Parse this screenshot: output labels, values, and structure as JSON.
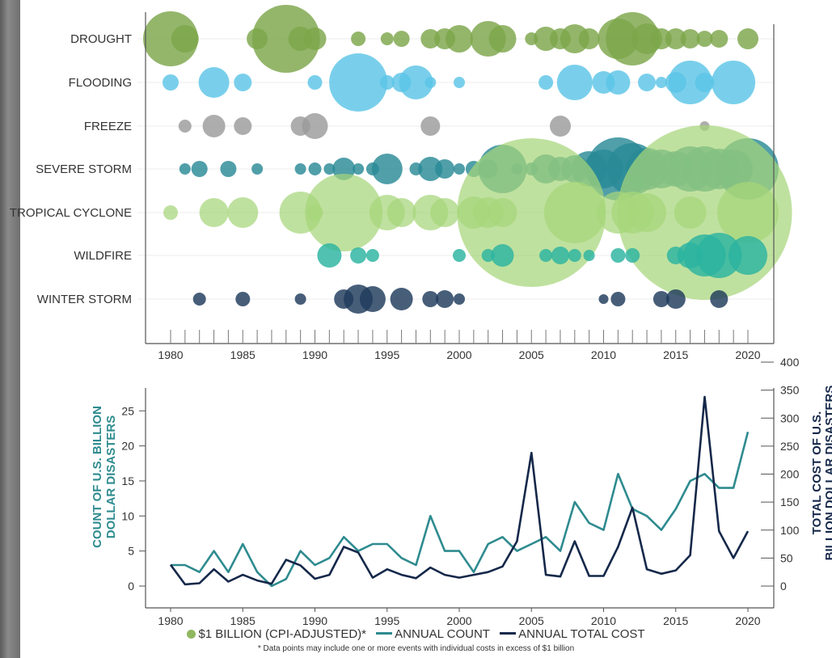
{
  "chart_data": [
    {
      "type": "bubble",
      "categories": [
        "DROUGHT",
        "FLOODING",
        "FREEZE",
        "SEVERE STORM",
        "TROPICAL CYCLONE",
        "WILDFIRE",
        "WINTER STORM"
      ],
      "x_ticks": [
        1980,
        1985,
        1990,
        1995,
        2000,
        2005,
        2010,
        2015,
        2020
      ],
      "xlim": [
        1980,
        2020
      ],
      "colors": {
        "DROUGHT": "#7ca64b",
        "FLOODING": "#5bc4e6",
        "FREEZE": "#9b9b9b",
        "SEVERE STORM": "#2a8a96",
        "TROPICAL CYCLONE": "#a6d67a",
        "WILDFIRE": "#2bb3a0",
        "WINTER STORM": "#1f3a5c"
      },
      "note": "bubble area represents event cost (CPI-adjusted)",
      "series": [
        {
          "category": "DROUGHT",
          "points": [
            [
              1980,
              34
            ],
            [
              1981,
              17
            ],
            [
              1986,
              13
            ],
            [
              1988,
              42
            ],
            [
              1989,
              15
            ],
            [
              1990,
              14
            ],
            [
              1993,
              9
            ],
            [
              1995,
              8
            ],
            [
              1996,
              10
            ],
            [
              1998,
              12
            ],
            [
              1999,
              13
            ],
            [
              2000,
              17
            ],
            [
              2002,
              22
            ],
            [
              2003,
              17
            ],
            [
              2005,
              8
            ],
            [
              2006,
              15
            ],
            [
              2007,
              13
            ],
            [
              2008,
              18
            ],
            [
              2009,
              13
            ],
            [
              2011,
              25
            ],
            [
              2012,
              33
            ],
            [
              2013,
              19
            ],
            [
              2014,
              13
            ],
            [
              2015,
              13
            ],
            [
              2016,
              12
            ],
            [
              2017,
              10
            ],
            [
              2018,
              11
            ],
            [
              2020,
              13
            ]
          ]
        },
        {
          "category": "FLOODING",
          "points": [
            [
              1980,
              10
            ],
            [
              1983,
              19
            ],
            [
              1985,
              11
            ],
            [
              1990,
              9
            ],
            [
              1993,
              36
            ],
            [
              1995,
              9
            ],
            [
              1996,
              12
            ],
            [
              1997,
              21
            ],
            [
              1998,
              7
            ],
            [
              2000,
              7
            ],
            [
              2006,
              9
            ],
            [
              2008,
              22
            ],
            [
              2010,
              14
            ],
            [
              2011,
              15
            ],
            [
              2013,
              11
            ],
            [
              2014,
              7
            ],
            [
              2015,
              13
            ],
            [
              2016,
              27
            ],
            [
              2017,
              12
            ],
            [
              2019,
              27
            ]
          ]
        },
        {
          "category": "FREEZE",
          "points": [
            [
              1981,
              8
            ],
            [
              1983,
              14
            ],
            [
              1985,
              11
            ],
            [
              1989,
              12
            ],
            [
              1990,
              16
            ],
            [
              1998,
              12
            ],
            [
              2007,
              13
            ],
            [
              2017,
              6
            ]
          ]
        },
        {
          "category": "SEVERE STORM",
          "points": [
            [
              1981,
              7
            ],
            [
              1982,
              10
            ],
            [
              1984,
              10
            ],
            [
              1986,
              7
            ],
            [
              1989,
              7
            ],
            [
              1990,
              8
            ],
            [
              1991,
              7
            ],
            [
              1992,
              14
            ],
            [
              1993,
              7
            ],
            [
              1994,
              8
            ],
            [
              1995,
              19
            ],
            [
              1997,
              8
            ],
            [
              1998,
              15
            ],
            [
              1999,
              12
            ],
            [
              2000,
              7
            ],
            [
              2001,
              10
            ],
            [
              2002,
              12
            ],
            [
              2003,
              30
            ],
            [
              2004,
              7
            ],
            [
              2005,
              8
            ],
            [
              2006,
              18
            ],
            [
              2007,
              15
            ],
            [
              2008,
              17
            ],
            [
              2009,
              22
            ],
            [
              2010,
              24
            ],
            [
              2011,
              39
            ],
            [
              2012,
              32
            ],
            [
              2013,
              26
            ],
            [
              2014,
              24
            ],
            [
              2015,
              22
            ],
            [
              2016,
              28
            ],
            [
              2017,
              28
            ],
            [
              2018,
              25
            ],
            [
              2019,
              24
            ],
            [
              2020,
              38
            ]
          ]
        },
        {
          "category": "TROPICAL CYCLONE",
          "points": [
            [
              1980,
              9
            ],
            [
              1983,
              18
            ],
            [
              1985,
              19
            ],
            [
              1989,
              26
            ],
            [
              1990,
              10
            ],
            [
              1992,
              48
            ],
            [
              1995,
              22
            ],
            [
              1996,
              18
            ],
            [
              1998,
              22
            ],
            [
              1999,
              18
            ],
            [
              2001,
              20
            ],
            [
              2002,
              19
            ],
            [
              2003,
              18
            ],
            [
              2005,
              92
            ],
            [
              2008,
              38
            ],
            [
              2011,
              26
            ],
            [
              2012,
              26
            ],
            [
              2013,
              24
            ],
            [
              2016,
              20
            ],
            [
              2017,
              108
            ],
            [
              2020,
              38
            ]
          ]
        },
        {
          "category": "WILDFIRE",
          "points": [
            [
              1991,
              15
            ],
            [
              1993,
              10
            ],
            [
              1994,
              8
            ],
            [
              2000,
              8
            ],
            [
              2002,
              8
            ],
            [
              2003,
              14
            ],
            [
              2006,
              8
            ],
            [
              2007,
              11
            ],
            [
              2008,
              8
            ],
            [
              2009,
              7
            ],
            [
              2011,
              9
            ],
            [
              2012,
              9
            ],
            [
              2015,
              11
            ],
            [
              2016,
              16
            ],
            [
              2017,
              26
            ],
            [
              2018,
              28
            ],
            [
              2020,
              24
            ]
          ]
        },
        {
          "category": "WINTER STORM",
          "points": [
            [
              1982,
              8
            ],
            [
              1985,
              9
            ],
            [
              1989,
              7
            ],
            [
              1992,
              12
            ],
            [
              1993,
              18
            ],
            [
              1994,
              16
            ],
            [
              1996,
              14
            ],
            [
              1998,
              10
            ],
            [
              1999,
              11
            ],
            [
              2000,
              7
            ],
            [
              2010,
              6
            ],
            [
              2011,
              9
            ],
            [
              2014,
              10
            ],
            [
              2015,
              12
            ],
            [
              2018,
              11
            ]
          ]
        }
      ]
    },
    {
      "type": "line",
      "x": [
        1980,
        1981,
        1982,
        1983,
        1984,
        1985,
        1986,
        1987,
        1988,
        1989,
        1990,
        1991,
        1992,
        1993,
        1994,
        1995,
        1996,
        1997,
        1998,
        1999,
        2000,
        2001,
        2002,
        2003,
        2004,
        2005,
        2006,
        2007,
        2008,
        2009,
        2010,
        2011,
        2012,
        2013,
        2014,
        2015,
        2016,
        2017,
        2018,
        2019,
        2020
      ],
      "x_ticks": [
        1980,
        1985,
        1990,
        1995,
        2000,
        2005,
        2010,
        2015,
        2020
      ],
      "xlim": [
        1979.5,
        2021
      ],
      "ylabel": "COUNT OF U.S. BILLION DOLLAR DISASTERS",
      "ylim": [
        0,
        27
      ],
      "y_ticks": [
        0,
        5,
        10,
        15,
        20,
        25
      ],
      "y2label": "TOTAL COST OF U.S. BILLION DOLLAR DISASTERS",
      "y2lim": [
        0,
        400
      ],
      "y2_ticks": [
        0,
        50,
        100,
        150,
        200,
        250,
        300,
        350,
        400
      ],
      "series": [
        {
          "name": "ANNUAL COUNT",
          "axis": "left",
          "color": "#2e8b8f",
          "values": [
            3,
            3,
            2,
            5,
            2,
            6,
            2,
            0,
            1,
            5,
            3,
            4,
            7,
            5,
            6,
            6,
            4,
            3,
            10,
            5,
            5,
            2,
            6,
            7,
            5,
            6,
            7,
            5,
            12,
            9,
            8,
            16,
            11,
            10,
            8,
            11,
            15,
            16,
            14,
            14,
            22
          ]
        },
        {
          "name": "ANNUAL TOTAL COST",
          "axis": "right",
          "color": "#15284a",
          "values": [
            38,
            3,
            5,
            30,
            8,
            20,
            10,
            4,
            47,
            37,
            13,
            20,
            70,
            60,
            15,
            30,
            20,
            14,
            33,
            20,
            15,
            20,
            25,
            35,
            80,
            238,
            20,
            17,
            80,
            18,
            18,
            70,
            140,
            30,
            22,
            28,
            55,
            338,
            98,
            50,
            98
          ]
        }
      ]
    }
  ],
  "legend": {
    "bubble_label": "$1 BILLION (CPI-ADJUSTED)*",
    "count_label": "ANNUAL COUNT",
    "cost_label": "ANNUAL TOTAL COST"
  },
  "footnote": "* Data points may include one or more events with individual costs in excess of $1 billion"
}
